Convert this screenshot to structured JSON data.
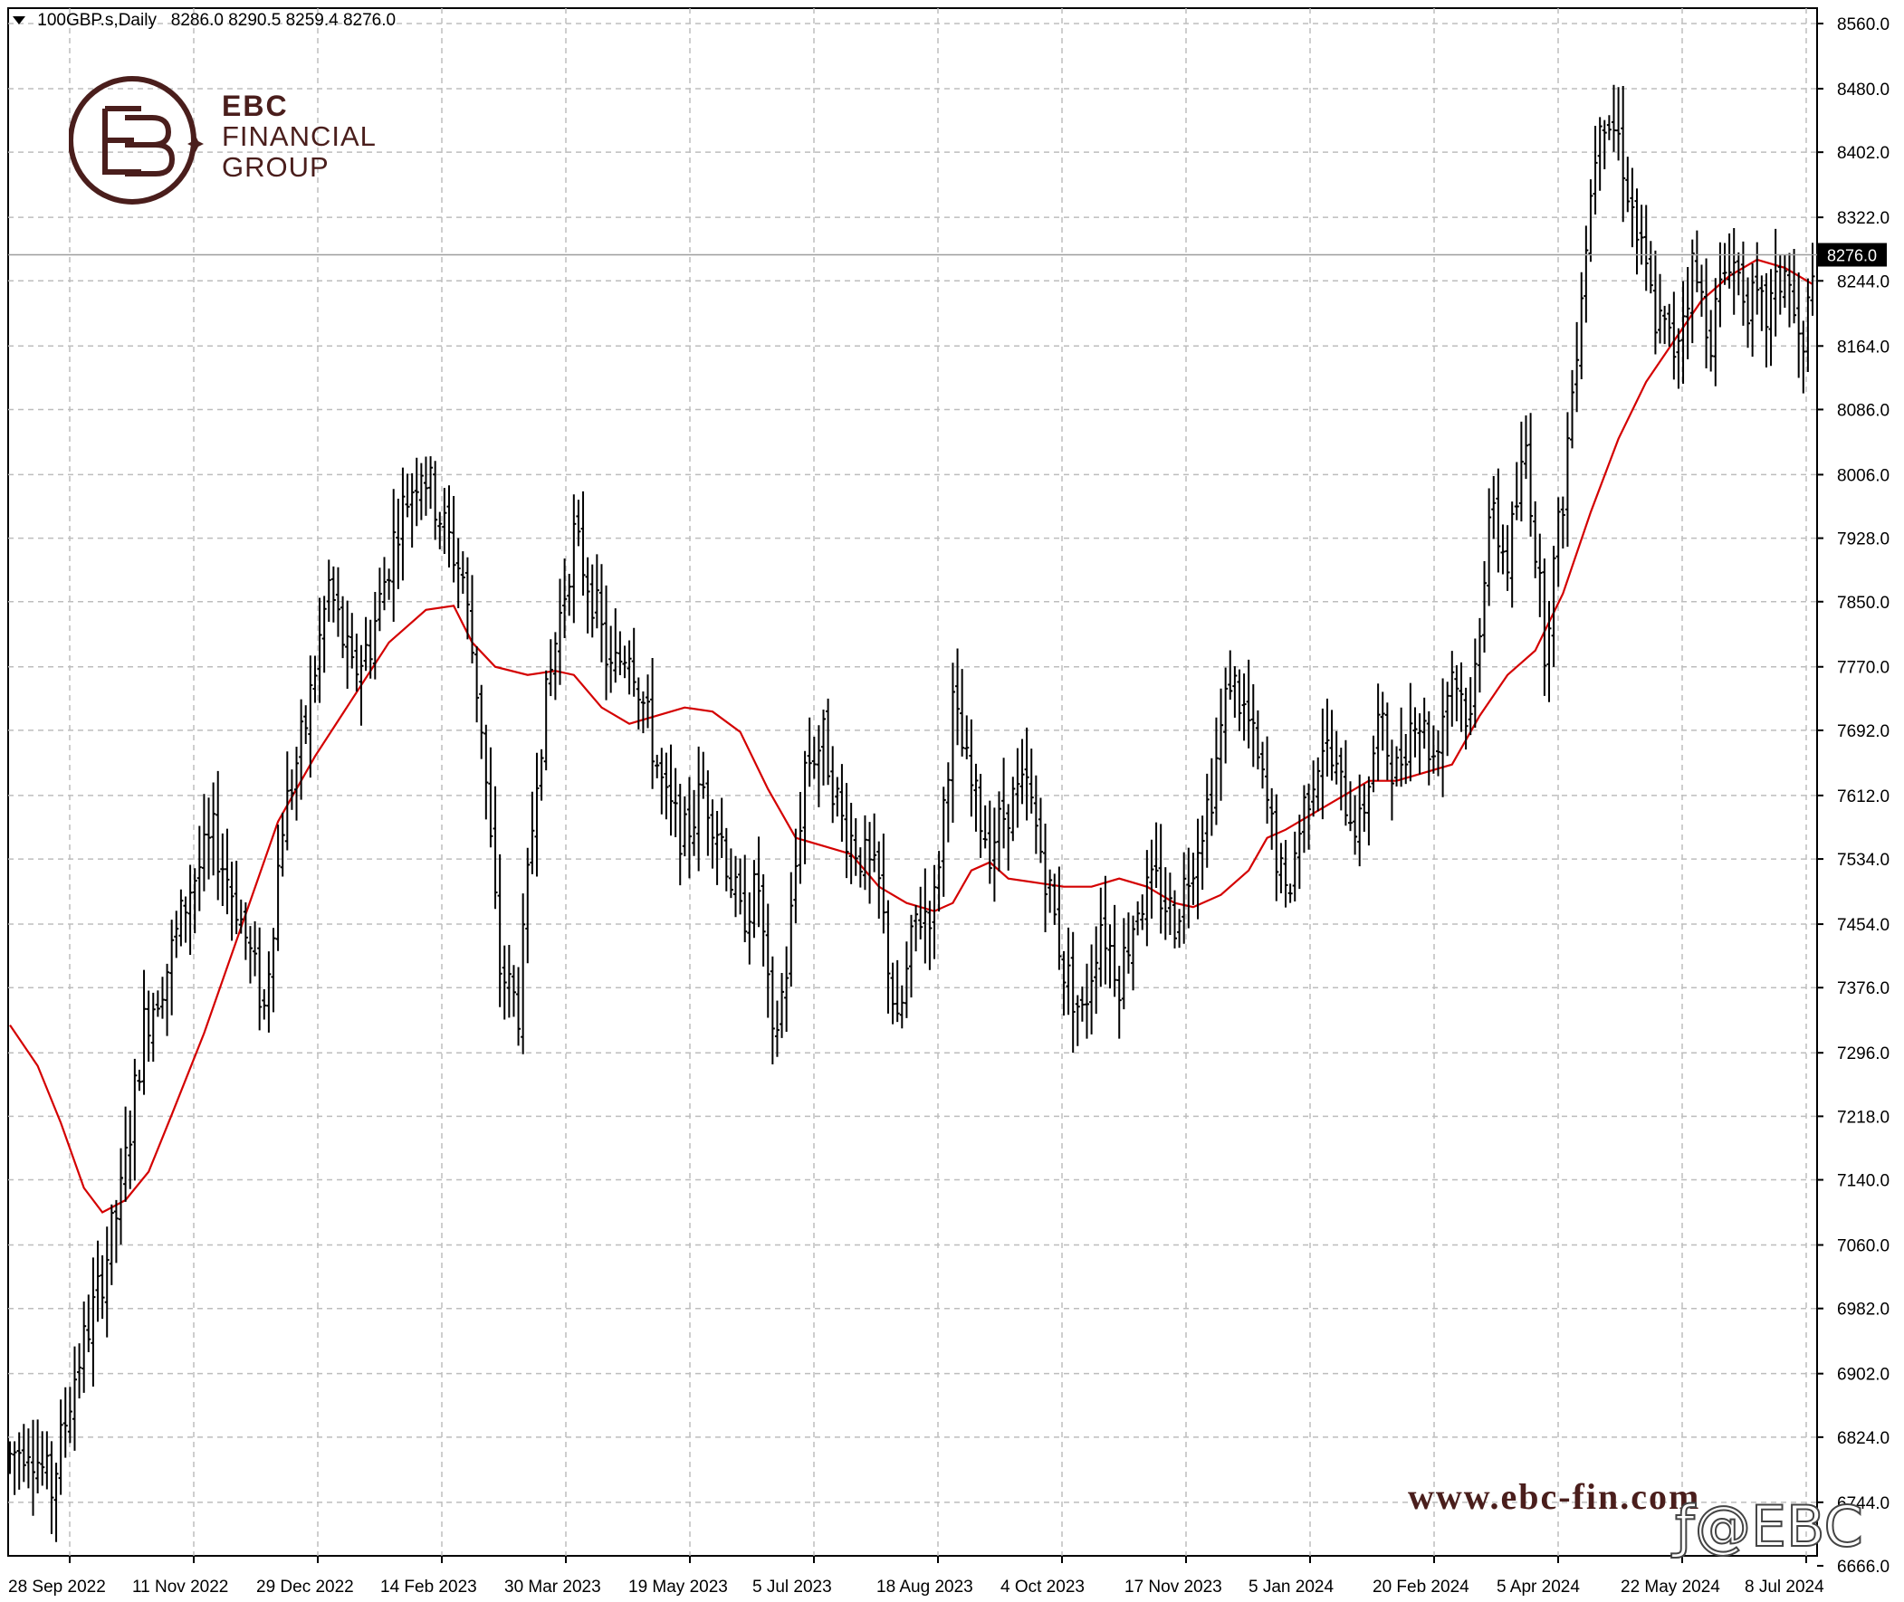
{
  "header": {
    "symbol": "100GBP.s,Daily",
    "ohlc": "8286.0 8290.5 8259.4 8276.0"
  },
  "logo": {
    "line1": "EBC",
    "line2": "FINANCIAL",
    "line3": "GROUP"
  },
  "watermark": "www.ebc-fin.com",
  "social": {
    "handle": "@EBC",
    "icon": "facebook-icon"
  },
  "colors": {
    "bars": "#000000",
    "ma": "#d40000",
    "grid": "#c8c8c8",
    "brand": "#4a1e1c",
    "price_tag_bg": "#000000"
  },
  "chart_data": {
    "type": "ohlc-bar",
    "symbol": "100GBP.s",
    "timeframe": "Daily",
    "last_price": 8276.0,
    "ylim": [
      6666.0,
      8560.0
    ],
    "y_ticks": [
      "8560.0",
      "8480.0",
      "8402.0",
      "8322.0",
      "8244.0",
      "8164.0",
      "8086.0",
      "8006.0",
      "7928.0",
      "7850.0",
      "7770.0",
      "7692.0",
      "7612.0",
      "7534.0",
      "7454.0",
      "7376.0",
      "7296.0",
      "7218.0",
      "7140.0",
      "7060.0",
      "6982.0",
      "6902.0",
      "6824.0",
      "6744.0",
      "6666.0"
    ],
    "x_ticks": [
      "28 Sep 2022",
      "11 Nov 2022",
      "29 Dec 2022",
      "14 Feb 2023",
      "30 Mar 2023",
      "19 May 2023",
      "5 Jul 2023",
      "18 Aug 2023",
      "4 Oct 2023",
      "17 Nov 2023",
      "5 Jan 2024",
      "20 Feb 2024",
      "5 Apr 2024",
      "22 May 2024",
      "8 Jul 2024"
    ],
    "price_path": [
      [
        0,
        6800
      ],
      [
        4,
        6820
      ],
      [
        9,
        6760
      ],
      [
        14,
        6900
      ],
      [
        19,
        7000
      ],
      [
        24,
        7120
      ],
      [
        29,
        7330
      ],
      [
        34,
        7400
      ],
      [
        39,
        7500
      ],
      [
        44,
        7560
      ],
      [
        49,
        7480
      ],
      [
        55,
        7350
      ],
      [
        59,
        7580
      ],
      [
        64,
        7700
      ],
      [
        69,
        7870
      ],
      [
        74,
        7760
      ],
      [
        78,
        7800
      ],
      [
        84,
        7950
      ],
      [
        89,
        8020
      ],
      [
        94,
        7940
      ],
      [
        98,
        7880
      ],
      [
        102,
        7700
      ],
      [
        106,
        7400
      ],
      [
        110,
        7350
      ],
      [
        114,
        7650
      ],
      [
        118,
        7800
      ],
      [
        122,
        7930
      ],
      [
        126,
        7860
      ],
      [
        130,
        7760
      ],
      [
        134,
        7800
      ],
      [
        138,
        7700
      ],
      [
        142,
        7600
      ],
      [
        146,
        7560
      ],
      [
        150,
        7620
      ],
      [
        154,
        7560
      ],
      [
        158,
        7460
      ],
      [
        162,
        7500
      ],
      [
        165,
        7300
      ],
      [
        168,
        7400
      ],
      [
        172,
        7650
      ],
      [
        176,
        7680
      ],
      [
        180,
        7580
      ],
      [
        184,
        7540
      ],
      [
        188,
        7500
      ],
      [
        192,
        7320
      ],
      [
        196,
        7460
      ],
      [
        200,
        7480
      ],
      [
        204,
        7720
      ],
      [
        208,
        7620
      ],
      [
        212,
        7550
      ],
      [
        216,
        7600
      ],
      [
        220,
        7620
      ],
      [
        224,
        7520
      ],
      [
        228,
        7400
      ],
      [
        232,
        7340
      ],
      [
        236,
        7460
      ],
      [
        240,
        7390
      ],
      [
        244,
        7480
      ],
      [
        248,
        7500
      ],
      [
        252,
        7460
      ],
      [
        256,
        7540
      ],
      [
        260,
        7620
      ],
      [
        264,
        7760
      ],
      [
        268,
        7700
      ],
      [
        272,
        7600
      ],
      [
        276,
        7480
      ],
      [
        280,
        7600
      ],
      [
        284,
        7680
      ],
      [
        288,
        7620
      ],
      [
        292,
        7570
      ],
      [
        296,
        7700
      ],
      [
        300,
        7640
      ],
      [
        304,
        7720
      ],
      [
        308,
        7660
      ],
      [
        312,
        7770
      ],
      [
        316,
        7700
      ],
      [
        320,
        7960
      ],
      [
        324,
        7900
      ],
      [
        328,
        8040
      ],
      [
        332,
        7800
      ],
      [
        336,
        7980
      ],
      [
        340,
        8240
      ],
      [
        344,
        8460
      ],
      [
        348,
        8420
      ],
      [
        352,
        8300
      ],
      [
        356,
        8200
      ],
      [
        360,
        8160
      ],
      [
        364,
        8260
      ],
      [
        368,
        8180
      ],
      [
        372,
        8280
      ],
      [
        376,
        8220
      ],
      [
        380,
        8200
      ],
      [
        384,
        8260
      ],
      [
        388,
        8140
      ],
      [
        390,
        8276
      ]
    ],
    "ma_path": [
      [
        0,
        7330
      ],
      [
        6,
        7280
      ],
      [
        11,
        7210
      ],
      [
        16,
        7130
      ],
      [
        20,
        7100
      ],
      [
        25,
        7115
      ],
      [
        30,
        7150
      ],
      [
        35,
        7220
      ],
      [
        42,
        7320
      ],
      [
        50,
        7450
      ],
      [
        58,
        7580
      ],
      [
        66,
        7660
      ],
      [
        74,
        7730
      ],
      [
        82,
        7800
      ],
      [
        90,
        7840
      ],
      [
        96,
        7845
      ],
      [
        100,
        7800
      ],
      [
        105,
        7770
      ],
      [
        112,
        7760
      ],
      [
        118,
        7765
      ],
      [
        122,
        7760
      ],
      [
        128,
        7720
      ],
      [
        134,
        7700
      ],
      [
        140,
        7710
      ],
      [
        146,
        7720
      ],
      [
        152,
        7715
      ],
      [
        158,
        7690
      ],
      [
        164,
        7620
      ],
      [
        170,
        7560
      ],
      [
        176,
        7550
      ],
      [
        182,
        7540
      ],
      [
        188,
        7500
      ],
      [
        194,
        7480
      ],
      [
        200,
        7470
      ],
      [
        204,
        7480
      ],
      [
        208,
        7520
      ],
      [
        212,
        7530
      ],
      [
        216,
        7510
      ],
      [
        222,
        7505
      ],
      [
        228,
        7500
      ],
      [
        234,
        7500
      ],
      [
        240,
        7510
      ],
      [
        246,
        7500
      ],
      [
        252,
        7480
      ],
      [
        256,
        7475
      ],
      [
        262,
        7490
      ],
      [
        268,
        7520
      ],
      [
        272,
        7560
      ],
      [
        276,
        7570
      ],
      [
        282,
        7590
      ],
      [
        288,
        7610
      ],
      [
        294,
        7630
      ],
      [
        300,
        7630
      ],
      [
        306,
        7640
      ],
      [
        312,
        7650
      ],
      [
        318,
        7710
      ],
      [
        324,
        7760
      ],
      [
        330,
        7790
      ],
      [
        336,
        7860
      ],
      [
        342,
        7960
      ],
      [
        348,
        8050
      ],
      [
        354,
        8120
      ],
      [
        360,
        8170
      ],
      [
        366,
        8220
      ],
      [
        372,
        8250
      ],
      [
        378,
        8270
      ],
      [
        384,
        8260
      ],
      [
        390,
        8240
      ]
    ]
  }
}
